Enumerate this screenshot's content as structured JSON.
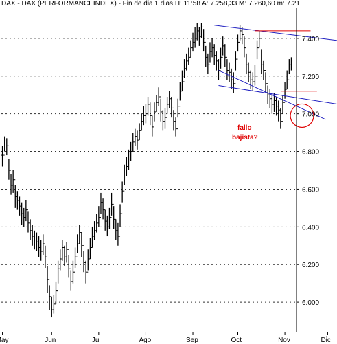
{
  "chart_data": {
    "type": "ohlc",
    "title": "DAX - DAX (PERFORMANCEINDEX) - Fin de dia 1 dias  H: 11:58  A: 7.258,33  M: 7.260,60  m: 7.21",
    "xlabel": "",
    "ylabel": "",
    "ylim": [
      5840,
      7560
    ],
    "yticks": [
      6000,
      6200,
      6400,
      6600,
      6800,
      7000,
      7200,
      7400
    ],
    "ytick_labels": [
      "6.000",
      "6.200",
      "6.400",
      "6.600",
      "6.800",
      "7.000",
      "7.200",
      "7.400"
    ],
    "month_labels": [
      "May",
      "Jun",
      "Jul",
      "Ago",
      "Sep",
      "Oct",
      "Nov",
      "Dic"
    ],
    "month_start_index": [
      0,
      23,
      45,
      67,
      89,
      110,
      132,
      152
    ],
    "series": [
      {
        "close": [
          6780,
          6855,
          6830,
          6700,
          6620,
          6650,
          6560,
          6540,
          6510,
          6470,
          6450,
          6490,
          6420,
          6380,
          6350,
          6330,
          6320,
          6290,
          6270,
          6310,
          6240,
          6120,
          6030,
          5960,
          5990,
          6060,
          6180,
          6230,
          6290,
          6240,
          6280,
          6180,
          6110,
          6160,
          6240,
          6310,
          6370,
          6300,
          6210,
          6160,
          6230,
          6290,
          6350,
          6380,
          6420,
          6450,
          6530,
          6490,
          6430,
          6400,
          6450,
          6520,
          6440,
          6380,
          6350,
          6470,
          6590,
          6680,
          6720,
          6760,
          6800,
          6850,
          6880,
          6860,
          6910,
          6960,
          6990,
          7000,
          7050,
          6990,
          6930,
          7010,
          7060,
          7090,
          7010,
          6960,
          6980,
          7050,
          7080,
          7030,
          6960,
          6920,
          7040,
          7120,
          7170,
          7240,
          7280,
          7300,
          7350,
          7380,
          7400,
          7440,
          7410,
          7460,
          7380,
          7300,
          7260,
          7330,
          7350,
          7310,
          7280,
          7230,
          7300,
          7360,
          7300,
          7230,
          7220,
          7180,
          7160,
          7290,
          7380,
          7440,
          7420,
          7350,
          7260,
          7220,
          7180,
          7170,
          7200,
          7350,
          7400,
          7260,
          7230,
          7160,
          7100,
          7080,
          7050,
          7070,
          7040,
          7020,
          6960,
          7060,
          7130,
          7180,
          7260,
          7280
        ],
        "high": [
          6830,
          6880,
          6870,
          6760,
          6680,
          6700,
          6620,
          6590,
          6560,
          6530,
          6500,
          6540,
          6480,
          6440,
          6410,
          6380,
          6370,
          6350,
          6330,
          6360,
          6300,
          6190,
          6090,
          6030,
          6040,
          6110,
          6220,
          6280,
          6330,
          6300,
          6320,
          6250,
          6170,
          6220,
          6290,
          6360,
          6410,
          6370,
          6270,
          6220,
          6280,
          6340,
          6400,
          6430,
          6470,
          6510,
          6580,
          6550,
          6490,
          6460,
          6500,
          6580,
          6510,
          6440,
          6420,
          6520,
          6640,
          6730,
          6770,
          6810,
          6850,
          6900,
          6920,
          6910,
          6950,
          7000,
          7040,
          7050,
          7090,
          7060,
          6990,
          7060,
          7100,
          7140,
          7080,
          7020,
          7030,
          7090,
          7120,
          7090,
          7020,
          6980,
          7080,
          7170,
          7230,
          7290,
          7320,
          7350,
          7390,
          7430,
          7460,
          7480,
          7460,
          7480,
          7450,
          7360,
          7320,
          7380,
          7400,
          7370,
          7330,
          7290,
          7350,
          7410,
          7370,
          7290,
          7270,
          7240,
          7220,
          7330,
          7420,
          7470,
          7460,
          7410,
          7320,
          7270,
          7230,
          7220,
          7260,
          7390,
          7440,
          7340,
          7280,
          7220,
          7150,
          7130,
          7100,
          7110,
          7090,
          7070,
          7030,
          7100,
          7170,
          7230,
          7290,
          7300
        ],
        "low": [
          6720,
          6800,
          6780,
          6650,
          6570,
          6580,
          6500,
          6490,
          6460,
          6410,
          6400,
          6430,
          6370,
          6330,
          6300,
          6280,
          6270,
          6240,
          6220,
          6250,
          6180,
          6050,
          5960,
          5920,
          5940,
          5990,
          6100,
          6170,
          6220,
          6190,
          6210,
          6130,
          6060,
          6100,
          6180,
          6260,
          6310,
          6240,
          6160,
          6100,
          6170,
          6230,
          6290,
          6330,
          6370,
          6400,
          6470,
          6440,
          6380,
          6350,
          6390,
          6460,
          6390,
          6330,
          6300,
          6400,
          6530,
          6620,
          6670,
          6700,
          6750,
          6800,
          6830,
          6810,
          6860,
          6910,
          6940,
          6950,
          6990,
          6940,
          6880,
          6960,
          7010,
          7040,
          6960,
          6910,
          6920,
          7000,
          7030,
          6980,
          6910,
          6880,
          6980,
          7070,
          7120,
          7190,
          7230,
          7260,
          7300,
          7330,
          7350,
          7390,
          7360,
          7400,
          7330,
          7250,
          7210,
          7270,
          7300,
          7260,
          7230,
          7180,
          7240,
          7310,
          7250,
          7180,
          7170,
          7130,
          7110,
          7230,
          7330,
          7390,
          7370,
          7300,
          7210,
          7170,
          7130,
          7120,
          7150,
          7290,
          7350,
          7210,
          7180,
          7110,
          7050,
          7030,
          7000,
          7010,
          6990,
          6960,
          6920,
          7000,
          7080,
          7130,
          7210,
          7230
        ]
      }
    ],
    "annotations": [
      {
        "type": "line",
        "color": "#2020c0",
        "from": [
          99,
          7470
        ],
        "to": [
          163,
          7380
        ]
      },
      {
        "type": "line",
        "color": "#2020c0",
        "from": [
          101,
          7230
        ],
        "to": [
          151,
          6970
        ]
      },
      {
        "type": "line",
        "color": "#2020c0",
        "from": [
          101,
          7150
        ],
        "to": [
          163,
          7040
        ]
      },
      {
        "type": "line",
        "color": "#e00000",
        "from": [
          118,
          7440
        ],
        "to": [
          144,
          7440
        ]
      },
      {
        "type": "line",
        "color": "#e00000",
        "from": [
          130,
          7120
        ],
        "to": [
          147,
          7120
        ]
      },
      {
        "type": "circle",
        "color": "#e00000",
        "center": [
          140,
          6990
        ]
      }
    ],
    "annotation_text": [
      "fallo",
      "bajista?"
    ]
  }
}
